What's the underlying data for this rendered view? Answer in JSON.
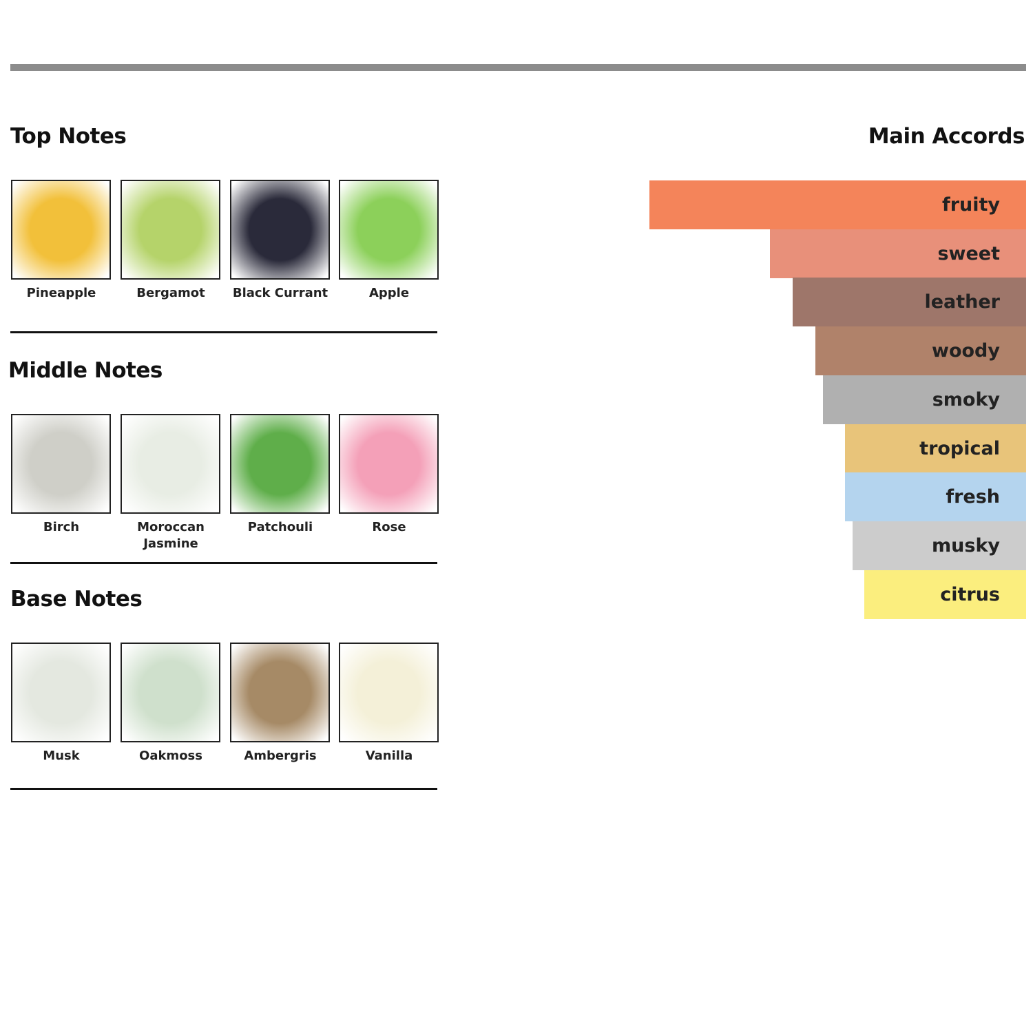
{
  "sections": [
    {
      "title": "Top Notes",
      "notes": [
        "Pineapple",
        "Bergamot",
        "Black Currant",
        "Apple"
      ]
    },
    {
      "title": "Middle Notes",
      "notes": [
        "Birch",
        "Moroccan Jasmine",
        "Patchouli",
        "Rose"
      ]
    },
    {
      "title": "Base Notes",
      "notes": [
        "Musk",
        "Oakmoss",
        "Ambergris",
        "Vanilla"
      ]
    }
  ],
  "chart_data": {
    "type": "bar",
    "orientation": "horizontal",
    "title": "Main Accords",
    "categories": [
      "fruity",
      "sweet",
      "leather",
      "woody",
      "smoky",
      "tropical",
      "fresh",
      "musky",
      "citrus"
    ],
    "values": [
      100,
      68,
      62,
      56,
      54,
      48,
      48,
      46,
      43
    ],
    "colors": [
      "#f4845a",
      "#e8907a",
      "#9e766a",
      "#b0826a",
      "#b0b0b0",
      "#e8c47a",
      "#b4d4ee",
      "#cccccc",
      "#fbee7e"
    ],
    "xlim": [
      0,
      100
    ]
  }
}
